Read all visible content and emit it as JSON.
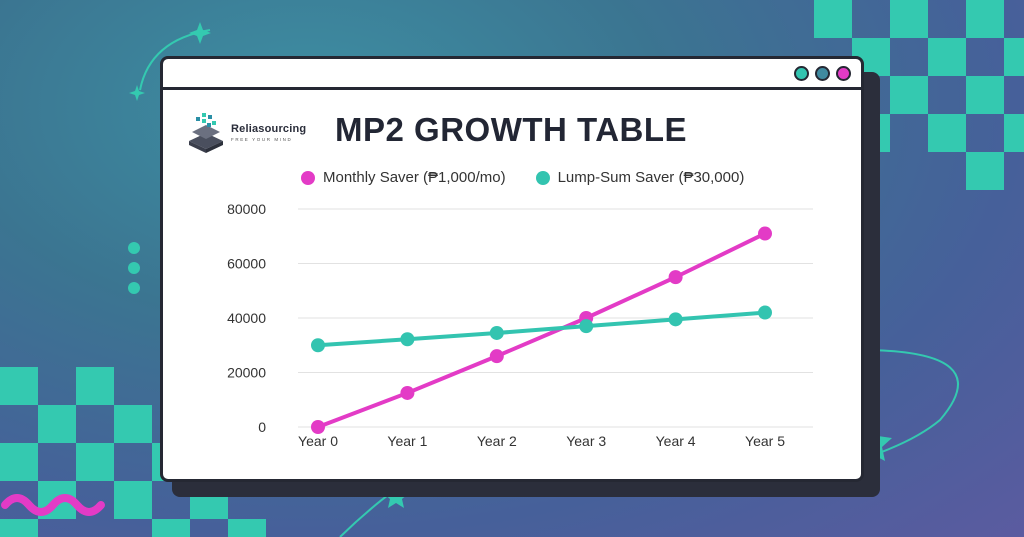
{
  "colors": {
    "monthly": "#e33bc6",
    "lumpsum": "#33c4b0",
    "teal_deco": "#34c9b0",
    "magenta_deco": "#e33bc6",
    "window_border": "#252833"
  },
  "window": {
    "dots": [
      "#33c4b0",
      "#3f8aa0",
      "#e33bc6"
    ]
  },
  "logo": {
    "brand": "Reliasourcing",
    "tagline": "FREE YOUR MIND"
  },
  "chart_data": {
    "type": "line",
    "title": "MP2 GROWTH TABLE",
    "categories": [
      "Year 0",
      "Year 1",
      "Year 2",
      "Year 3",
      "Year 4",
      "Year 5"
    ],
    "series": [
      {
        "name": "Monthly Saver (₱1,000/mo)",
        "color": "#e33bc6",
        "values": [
          0,
          12500,
          26000,
          40000,
          55000,
          71000
        ]
      },
      {
        "name": "Lump-Sum Saver (₱30,000)",
        "color": "#33c4b0",
        "values": [
          30000,
          32200,
          34500,
          37000,
          39500,
          42000
        ]
      }
    ],
    "yticks": [
      0,
      20000,
      40000,
      60000,
      80000
    ],
    "yticks_labels": [
      "0",
      "20000",
      "40000",
      "60000",
      "80000"
    ],
    "ylim": [
      0,
      80000
    ],
    "xlabel": "",
    "ylabel": "",
    "grid": true,
    "legend": "top"
  }
}
